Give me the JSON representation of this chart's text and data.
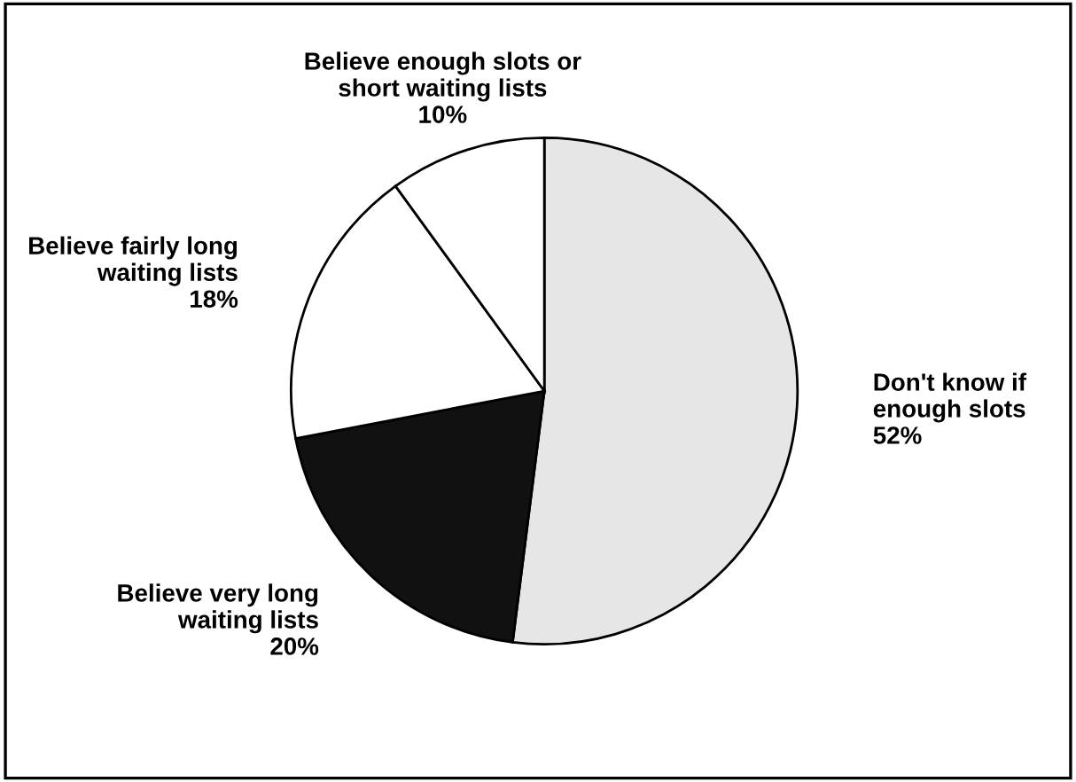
{
  "chart_data": {
    "type": "pie",
    "categories": [
      "Don't know if\nenough slots",
      "Believe very long\nwaiting lists",
      "Believe fairly long\nwaiting lists",
      "Believe enough slots or\nshort waiting lists"
    ],
    "values": [
      52,
      20,
      18,
      10
    ],
    "colors": [
      "#e6e6e6",
      "#111111",
      "#ffffff",
      "#ffffff"
    ],
    "value_labels": [
      "52%",
      "20%",
      "18%",
      "10%"
    ],
    "legend": false
  }
}
